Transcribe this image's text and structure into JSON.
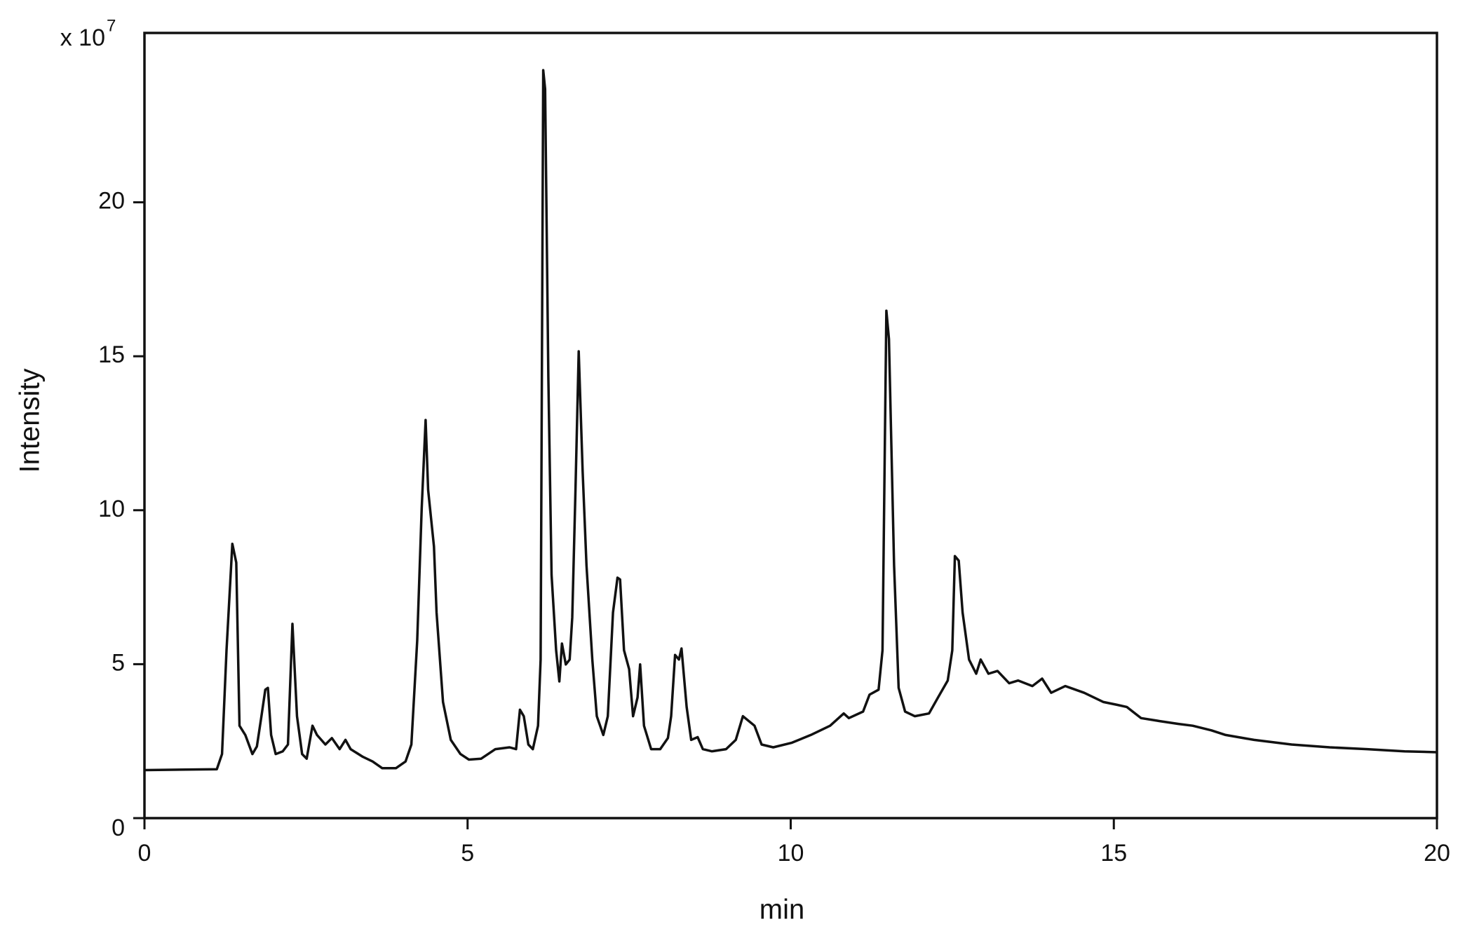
{
  "chart_data": {
    "type": "line",
    "xlabel": "min",
    "ylabel": "Intensity",
    "y_scale_label": "x 10",
    "y_scale_exponent": 7,
    "xlim": [
      0,
      20
    ],
    "xticks": [
      0,
      5,
      10,
      15,
      20
    ],
    "ylim": [
      0,
      25.5
    ],
    "yticks": [
      0,
      5,
      10,
      15,
      20
    ],
    "grid": false,
    "series": [
      {
        "color": "#111111",
        "x": [
          0,
          1.12,
          1.2,
          1.27,
          1.36,
          1.42,
          1.47,
          1.56,
          1.67,
          1.74,
          1.81,
          1.87,
          1.91,
          1.96,
          2.03,
          2.14,
          2.22,
          2.29,
          2.36,
          2.44,
          2.51,
          2.6,
          2.67,
          2.8,
          2.9,
          3.02,
          3.11,
          3.19,
          3.38,
          3.53,
          3.68,
          3.89,
          4.04,
          4.13,
          4.22,
          4.29,
          4.35,
          4.39,
          4.48,
          4.52,
          4.62,
          4.74,
          4.89,
          5.02,
          5.21,
          5.43,
          5.65,
          5.75,
          5.81,
          5.87,
          5.94,
          6.01,
          6.09,
          6.13,
          6.17,
          6.2,
          6.25,
          6.3,
          6.37,
          6.42,
          6.46,
          6.52,
          6.58,
          6.62,
          6.67,
          6.72,
          6.78,
          6.84,
          6.93,
          7.0,
          7.1,
          7.17,
          7.25,
          7.32,
          7.36,
          7.42,
          7.5,
          7.56,
          7.63,
          7.67,
          7.73,
          7.84,
          7.98,
          8.1,
          8.15,
          8.21,
          8.27,
          8.31,
          8.39,
          8.46,
          8.56,
          8.64,
          8.78,
          9.0,
          9.15,
          9.26,
          9.44,
          9.55,
          9.73,
          10.02,
          10.31,
          10.61,
          10.82,
          10.9,
          11.12,
          11.22,
          11.36,
          11.42,
          11.48,
          11.52,
          11.6,
          11.67,
          11.77,
          11.92,
          12.14,
          12.28,
          12.43,
          12.5,
          12.54,
          12.6,
          12.66,
          12.76,
          12.87,
          12.94,
          13.06,
          13.2,
          13.38,
          13.52,
          13.74,
          13.89,
          14.03,
          14.25,
          14.54,
          14.84,
          15.05,
          15.2,
          15.42,
          15.71,
          16.0,
          16.22,
          16.51,
          16.73,
          17.17,
          17.75,
          18.34,
          18.92,
          19.5,
          20.0
        ],
        "values": [
          1.56,
          1.59,
          2.08,
          5.45,
          8.91,
          8.3,
          3.0,
          2.7,
          2.08,
          2.33,
          3.31,
          4.17,
          4.23,
          2.7,
          2.08,
          2.17,
          2.39,
          6.31,
          3.31,
          2.08,
          1.93,
          3.0,
          2.7,
          2.39,
          2.6,
          2.24,
          2.54,
          2.24,
          1.99,
          1.84,
          1.62,
          1.62,
          1.84,
          2.39,
          5.76,
          10.05,
          12.93,
          10.66,
          8.82,
          6.68,
          3.77,
          2.54,
          2.08,
          1.9,
          1.93,
          2.24,
          2.3,
          2.24,
          3.52,
          3.31,
          2.39,
          2.24,
          3.0,
          5.15,
          24.29,
          23.68,
          14.33,
          7.9,
          5.45,
          4.44,
          5.67,
          4.99,
          5.15,
          6.52,
          10.66,
          15.16,
          11.27,
          8.21,
          5.15,
          3.31,
          2.7,
          3.31,
          6.68,
          7.81,
          7.75,
          5.45,
          4.84,
          3.31,
          3.92,
          4.99,
          3.0,
          2.24,
          2.24,
          2.6,
          3.31,
          5.3,
          5.15,
          5.51,
          3.61,
          2.54,
          2.63,
          2.24,
          2.17,
          2.24,
          2.54,
          3.31,
          3.0,
          2.39,
          2.3,
          2.45,
          2.7,
          3.0,
          3.4,
          3.25,
          3.46,
          4.01,
          4.17,
          5.45,
          16.48,
          15.56,
          8.21,
          4.23,
          3.46,
          3.31,
          3.4,
          3.92,
          4.47,
          5.45,
          8.51,
          8.36,
          6.68,
          5.15,
          4.69,
          5.15,
          4.69,
          4.78,
          4.38,
          4.47,
          4.29,
          4.53,
          4.07,
          4.29,
          4.07,
          3.77,
          3.68,
          3.61,
          3.25,
          3.15,
          3.06,
          3.0,
          2.85,
          2.7,
          2.54,
          2.39,
          2.3,
          2.24,
          2.17,
          2.14
        ]
      }
    ]
  }
}
